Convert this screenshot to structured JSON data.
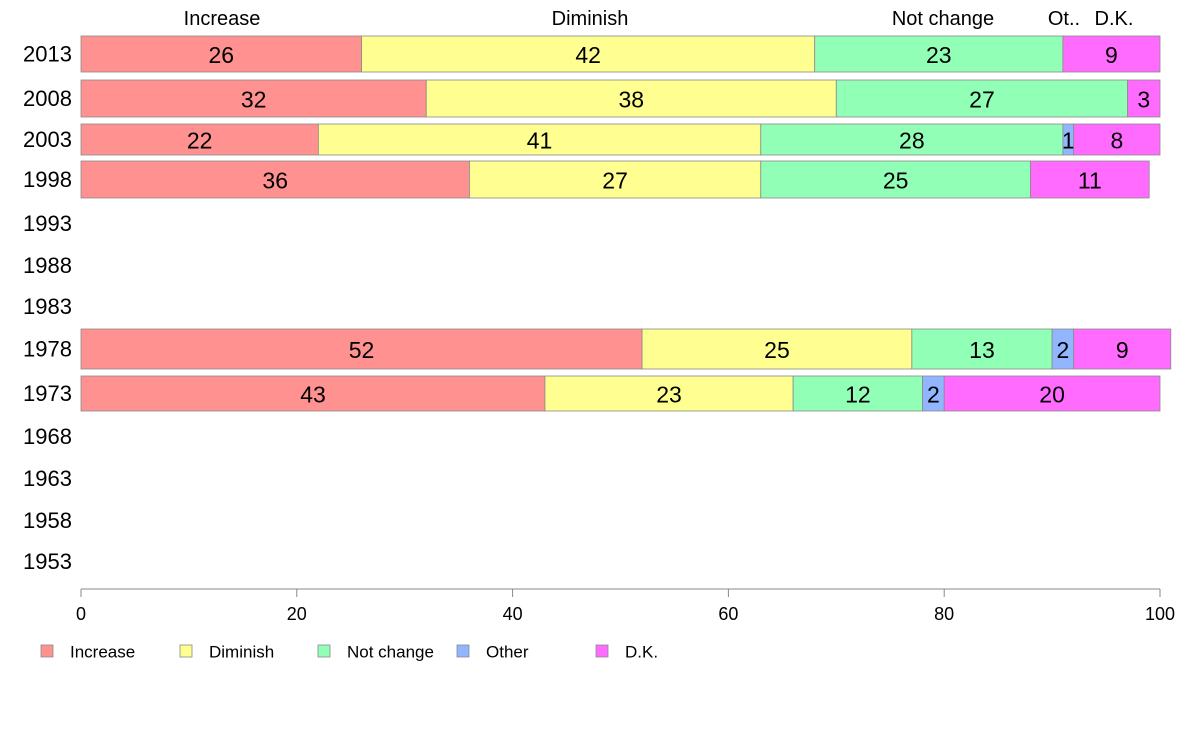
{
  "chart_data": {
    "type": "bar",
    "orientation": "horizontal",
    "stacked": true,
    "categories": [
      "2013",
      "2008",
      "2003",
      "1998",
      "1993",
      "1988",
      "1983",
      "1978",
      "1973",
      "1968",
      "1963",
      "1958",
      "1953"
    ],
    "series": [
      {
        "name": "Increase",
        "color": "#ff9191",
        "values": [
          26,
          32,
          22,
          36,
          null,
          null,
          null,
          52,
          43,
          null,
          null,
          null,
          null
        ]
      },
      {
        "name": "Diminish",
        "color": "#ffff91",
        "values": [
          42,
          38,
          41,
          27,
          null,
          null,
          null,
          25,
          23,
          null,
          null,
          null,
          null
        ]
      },
      {
        "name": "Not change",
        "color": "#91ffb6",
        "values": [
          23,
          27,
          28,
          25,
          null,
          null,
          null,
          13,
          12,
          null,
          null,
          null,
          null
        ]
      },
      {
        "name": "Other",
        "color": "#91b6ff",
        "values": [
          0,
          0,
          1,
          0,
          null,
          null,
          null,
          2,
          2,
          null,
          null,
          null,
          null
        ]
      },
      {
        "name": "D.K.",
        "color": "#ff6bff",
        "values": [
          9,
          3,
          8,
          11,
          null,
          null,
          null,
          9,
          20,
          null,
          null,
          null,
          null
        ]
      }
    ],
    "top_labels": [
      "Increase",
      "Diminish",
      "Not change",
      "Ot..",
      "D.K."
    ],
    "xlim": [
      0,
      100
    ],
    "xticks": [
      0,
      20,
      40,
      60,
      80,
      100
    ],
    "grid": false,
    "legend": "bottom-left"
  }
}
